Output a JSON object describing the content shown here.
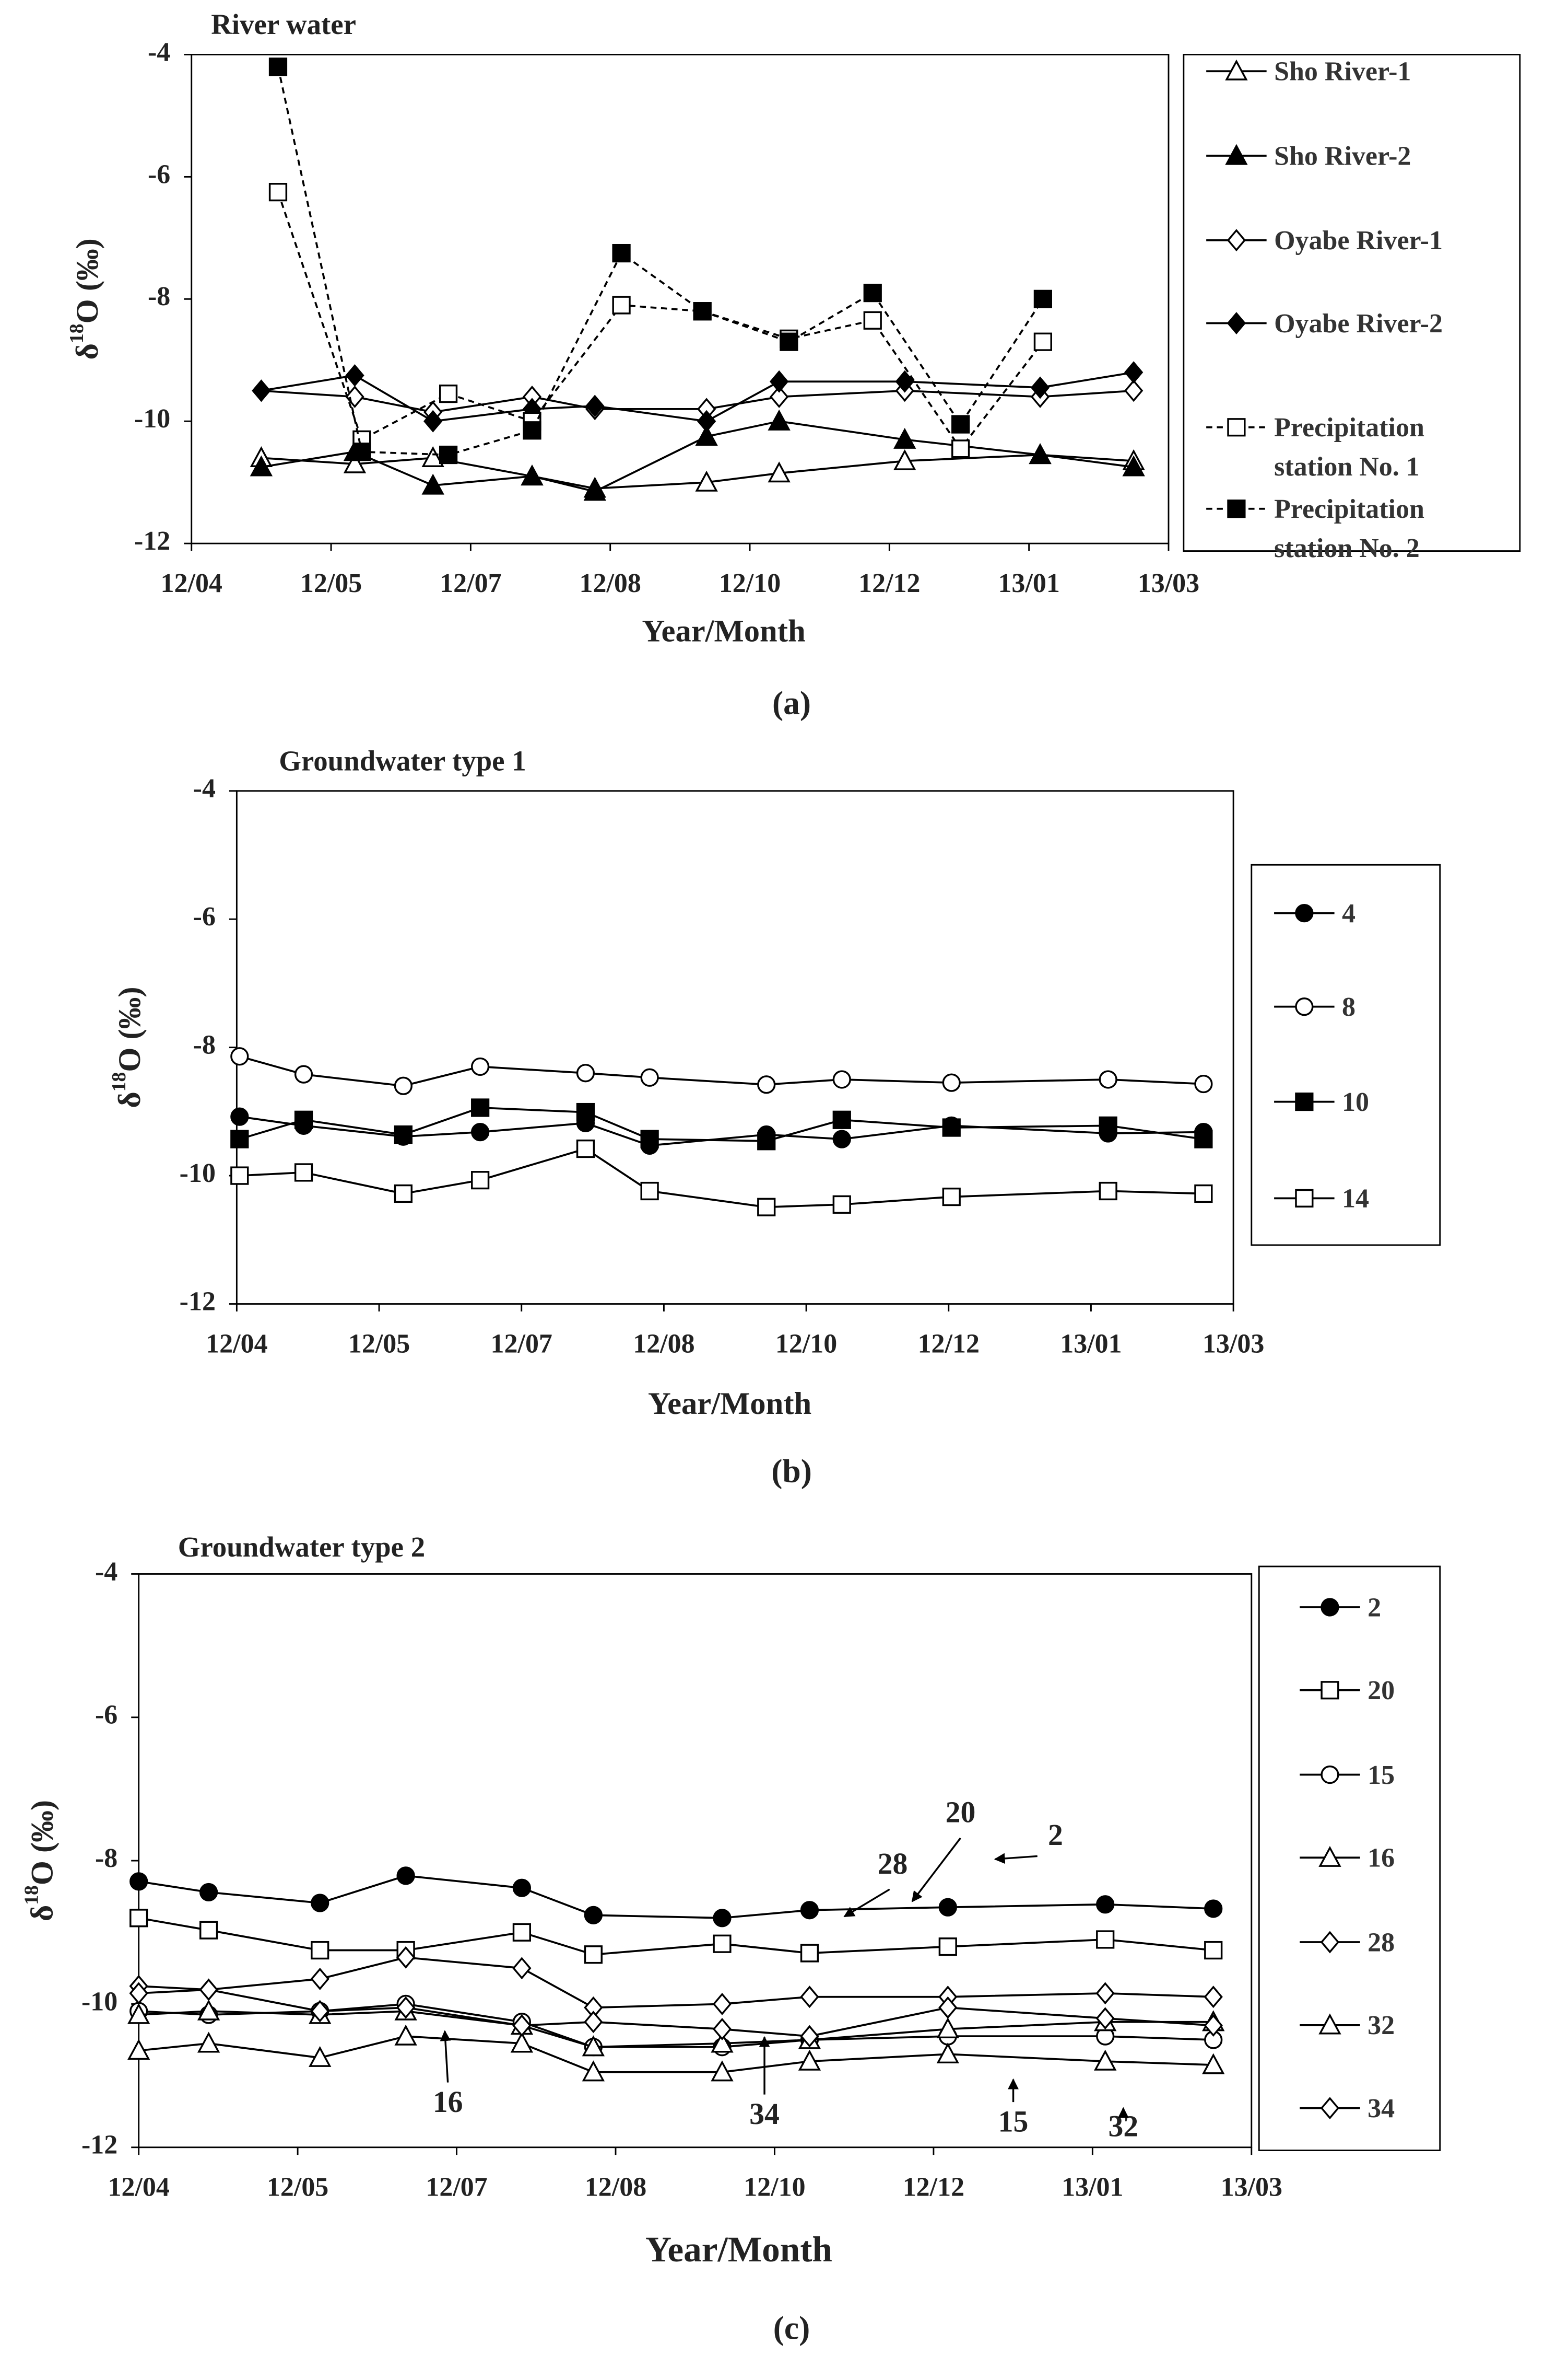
{
  "chart_data": [
    {
      "type": "line",
      "title": "River water",
      "caption": "(a)",
      "xlabel": "Year/Month",
      "ylabel": {
        "prefix": "δ",
        "sup": "18",
        "suffix": "O (‰)"
      },
      "xlim": [
        0,
        7
      ],
      "xticks": [
        {
          "value": 0,
          "label": "12/04"
        },
        {
          "value": 1,
          "label": "12/05"
        },
        {
          "value": 2,
          "label": "12/07"
        },
        {
          "value": 3,
          "label": "12/08"
        },
        {
          "value": 4,
          "label": "12/10"
        },
        {
          "value": 5,
          "label": "12/12"
        },
        {
          "value": 6,
          "label": "13/01"
        },
        {
          "value": 7,
          "label": "13/03"
        }
      ],
      "ylim": [
        -12,
        -4
      ],
      "yticks": [
        -4,
        -6,
        -8,
        -10,
        -12
      ],
      "legend": "right",
      "series": [
        {
          "name": "Sho River-1",
          "color": "#000",
          "marker": "triangle-open",
          "line": "solid",
          "x": [
            0.5,
            1.17,
            1.73,
            2.44,
            2.89,
            3.69,
            4.21,
            5.11,
            6.08,
            6.75
          ],
          "values": [
            -10.6,
            -10.7,
            -10.6,
            -10.9,
            -11.1,
            -11.0,
            -10.85,
            -10.65,
            -10.55,
            -10.65
          ]
        },
        {
          "name": "Sho River-2",
          "color": "#000",
          "marker": "triangle",
          "line": "solid",
          "x": [
            0.5,
            1.17,
            1.73,
            2.44,
            2.89,
            3.69,
            4.21,
            5.11,
            6.08,
            6.75
          ],
          "values": [
            -10.75,
            -10.5,
            -11.05,
            -10.9,
            -11.15,
            -10.25,
            -10.0,
            -10.3,
            -10.55,
            -10.75
          ]
        },
        {
          "name": "Oyabe River-1",
          "color": "#000",
          "marker": "diamond-open",
          "line": "solid",
          "x": [
            0.5,
            1.17,
            1.73,
            2.44,
            2.89,
            3.69,
            4.21,
            5.11,
            6.08,
            6.75
          ],
          "values": [
            -9.5,
            -9.6,
            -9.85,
            -9.6,
            -9.8,
            -9.8,
            -9.6,
            -9.5,
            -9.6,
            -9.5
          ]
        },
        {
          "name": "Oyabe River-2",
          "color": "#000",
          "marker": "diamond",
          "line": "solid",
          "x": [
            0.5,
            1.17,
            1.73,
            2.44,
            2.89,
            3.69,
            4.21,
            5.11,
            6.08,
            6.75
          ],
          "values": [
            -9.5,
            -9.25,
            -10.0,
            -9.8,
            -9.75,
            -10.0,
            -9.35,
            -9.35,
            -9.45,
            -9.2
          ]
        },
        {
          "name": "Precipitation station No. 1",
          "color": "#000",
          "marker": "square-open",
          "line": "dashed",
          "x": [
            0.62,
            1.22,
            1.84,
            2.44,
            3.08,
            3.66,
            4.28,
            4.88,
            5.51,
            6.1
          ],
          "values": [
            -6.25,
            -10.3,
            -9.55,
            -10.0,
            -8.1,
            -8.2,
            -8.65,
            -8.35,
            -10.45,
            -8.7
          ]
        },
        {
          "name": "Precipitation station No. 2",
          "color": "#000",
          "marker": "square",
          "line": "dashed",
          "x": [
            0.62,
            1.22,
            1.84,
            2.44,
            3.08,
            3.66,
            4.28,
            4.88,
            5.51,
            6.1
          ],
          "values": [
            -4.2,
            -10.5,
            -10.55,
            -10.15,
            -7.25,
            -8.2,
            -8.7,
            -7.9,
            -10.05,
            -8.0
          ]
        }
      ]
    },
    {
      "type": "line",
      "title": "Groundwater type 1",
      "caption": "(b)",
      "xlabel": "Year/Month",
      "ylabel": {
        "prefix": "δ",
        "sup": "18",
        "suffix": "O (‰)"
      },
      "xlim": [
        0,
        7
      ],
      "xticks": [
        {
          "value": 0,
          "label": "12/04"
        },
        {
          "value": 1,
          "label": "12/05"
        },
        {
          "value": 2,
          "label": "12/07"
        },
        {
          "value": 3,
          "label": "12/08"
        },
        {
          "value": 4,
          "label": "12/10"
        },
        {
          "value": 5,
          "label": "12/12"
        },
        {
          "value": 6,
          "label": "13/01"
        },
        {
          "value": 7,
          "label": "13/03"
        }
      ],
      "ylim": [
        -12,
        -4
      ],
      "yticks": [
        -4,
        -6,
        -8,
        -10,
        -12
      ],
      "legend": "right",
      "series": [
        {
          "name": "4",
          "color": "#000",
          "marker": "circle",
          "line": "solid",
          "x": [
            0.02,
            0.47,
            1.17,
            1.71,
            2.45,
            2.9,
            3.72,
            4.25,
            5.02,
            6.12,
            6.79
          ],
          "values": [
            -9.08,
            -9.22,
            -9.39,
            -9.32,
            -9.18,
            -9.53,
            -9.36,
            -9.43,
            -9.22,
            -9.34,
            -9.32
          ]
        },
        {
          "name": "8",
          "color": "#000",
          "marker": "circle-open",
          "line": "solid",
          "x": [
            0.02,
            0.47,
            1.17,
            1.71,
            2.45,
            2.9,
            3.72,
            4.25,
            5.02,
            6.12,
            6.79
          ],
          "values": [
            -8.14,
            -8.42,
            -8.6,
            -8.3,
            -8.4,
            -8.47,
            -8.58,
            -8.5,
            -8.55,
            -8.5,
            -8.57
          ]
        },
        {
          "name": "10",
          "color": "#000",
          "marker": "square",
          "line": "solid",
          "x": [
            0.02,
            0.47,
            1.17,
            1.71,
            2.45,
            2.9,
            3.72,
            4.25,
            5.02,
            6.12,
            6.79
          ],
          "values": [
            -9.43,
            -9.13,
            -9.36,
            -8.94,
            -9.01,
            -9.43,
            -9.46,
            -9.13,
            -9.25,
            -9.22,
            -9.43
          ]
        },
        {
          "name": "14",
          "color": "#000",
          "marker": "square-open",
          "line": "solid",
          "x": [
            0.02,
            0.47,
            1.17,
            1.71,
            2.45,
            2.9,
            3.72,
            4.25,
            5.02,
            6.12,
            6.79
          ],
          "values": [
            -10.0,
            -9.95,
            -10.28,
            -10.07,
            -9.58,
            -10.24,
            -10.49,
            -10.45,
            -10.33,
            -10.24,
            -10.28
          ]
        }
      ]
    },
    {
      "type": "line",
      "title": "Groundwater type 2",
      "caption": "(c)",
      "xlabel": "Year/Month",
      "ylabel": {
        "prefix": "δ",
        "sup": "18",
        "suffix": "O (‰)"
      },
      "xlim": [
        0,
        7
      ],
      "xticks": [
        {
          "value": 0,
          "label": "12/04"
        },
        {
          "value": 1,
          "label": "12/05"
        },
        {
          "value": 2,
          "label": "12/07"
        },
        {
          "value": 3,
          "label": "12/08"
        },
        {
          "value": 4,
          "label": "12/10"
        },
        {
          "value": 5,
          "label": "12/12"
        },
        {
          "value": 6,
          "label": "13/01"
        },
        {
          "value": 7,
          "label": "13/03"
        }
      ],
      "ylim": [
        -12,
        -4
      ],
      "yticks": [
        -4,
        -6,
        -8,
        -10,
        -12
      ],
      "legend": "right",
      "annotations": [
        "20",
        "2",
        "28",
        "16",
        "34",
        "15",
        "32"
      ],
      "series": [
        {
          "name": "2",
          "color": "#000",
          "marker": "circle",
          "line": "solid",
          "x": [
            0,
            0.44,
            1.14,
            1.68,
            2.41,
            2.86,
            3.67,
            4.22,
            5.09,
            6.08,
            6.76
          ],
          "values": [
            -8.29,
            -8.44,
            -8.59,
            -8.21,
            -8.38,
            -8.76,
            -8.8,
            -8.69,
            -8.65,
            -8.61,
            -8.67
          ]
        },
        {
          "name": "20",
          "color": "#000",
          "marker": "square-open",
          "line": "solid",
          "x": [
            0,
            0.44,
            1.14,
            1.68,
            2.41,
            2.86,
            3.67,
            4.22,
            5.09,
            6.08,
            6.76
          ],
          "values": [
            -8.8,
            -8.97,
            -9.25,
            -9.25,
            -9.0,
            -9.31,
            -9.16,
            -9.29,
            -9.2,
            -9.1,
            -9.25
          ]
        },
        {
          "name": "15",
          "color": "#000",
          "marker": "circle-open",
          "line": "solid",
          "x": [
            0,
            0.44,
            1.14,
            1.68,
            2.41,
            2.86,
            3.67,
            4.22,
            5.09,
            6.08,
            6.76
          ],
          "values": [
            -10.1,
            -10.15,
            -10.1,
            -10.0,
            -10.25,
            -10.6,
            -10.6,
            -10.5,
            -10.45,
            -10.45,
            -10.5
          ]
        },
        {
          "name": "16",
          "color": "#000",
          "marker": "triangle-open",
          "line": "solid",
          "x": [
            0,
            0.44,
            1.14,
            1.68,
            2.41,
            2.86,
            3.67,
            4.22,
            5.09,
            6.08,
            6.76
          ],
          "values": [
            -10.15,
            -10.1,
            -10.15,
            -10.1,
            -10.3,
            -10.6,
            -10.55,
            -10.5,
            -10.35,
            -10.25,
            -10.25
          ]
        },
        {
          "name": "28",
          "color": "#000",
          "marker": "diamond-open",
          "line": "solid",
          "x": [
            0,
            0.44,
            1.14,
            1.68,
            2.41,
            2.86,
            3.67,
            4.22,
            5.09,
            6.08,
            6.76
          ],
          "values": [
            -9.75,
            -9.8,
            -9.65,
            -9.35,
            -9.5,
            -10.05,
            -10.0,
            -9.9,
            -9.9,
            -9.85,
            -9.9
          ]
        },
        {
          "name": "32",
          "color": "#000",
          "marker": "triangle-open",
          "line": "solid",
          "x": [
            0,
            0.44,
            1.14,
            1.68,
            2.41,
            2.86,
            3.67,
            4.22,
            5.09,
            6.08,
            6.76
          ],
          "values": [
            -10.65,
            -10.55,
            -10.75,
            -10.45,
            -10.55,
            -10.95,
            -10.95,
            -10.8,
            -10.7,
            -10.8,
            -10.85
          ]
        },
        {
          "name": "34",
          "color": "#000",
          "marker": "diamond-open",
          "line": "solid",
          "x": [
            0,
            0.44,
            1.14,
            1.68,
            2.41,
            2.86,
            3.67,
            4.22,
            5.09,
            6.08,
            6.76
          ],
          "values": [
            -9.85,
            -9.8,
            -10.1,
            -10.05,
            -10.3,
            -10.25,
            -10.35,
            -10.45,
            -10.05,
            -10.2,
            -10.3
          ]
        }
      ]
    }
  ]
}
